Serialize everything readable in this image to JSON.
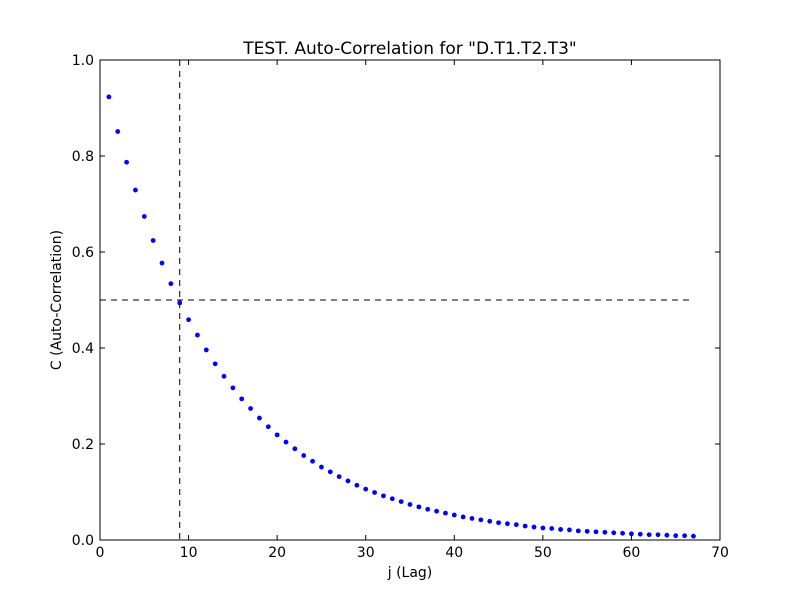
{
  "chart_data": {
    "type": "scatter",
    "title": "TEST. Auto-Correlation for \"D.T1.T2.T3\"",
    "xlabel": "j (Lag)",
    "ylabel": "C (Auto-Correlation)",
    "xlim": [
      0,
      70
    ],
    "ylim": [
      0.0,
      1.0
    ],
    "xticks": [
      "0",
      "10",
      "20",
      "30",
      "40",
      "50",
      "60",
      "70"
    ],
    "yticks": [
      "0.0",
      "0.2",
      "0.4",
      "0.6",
      "0.8",
      "1.0"
    ],
    "grid": false,
    "legend": "none",
    "marker_color": "#0000ff",
    "reference_lines": {
      "horizontal_y": 0.5,
      "vertical_x": 9
    },
    "series": [
      {
        "x": [
          1,
          2,
          3,
          4,
          5,
          6,
          7,
          8,
          9,
          10,
          11,
          12,
          13,
          14,
          15,
          16,
          17,
          18,
          19,
          20,
          21,
          22,
          23,
          24,
          25,
          26,
          27,
          28,
          29,
          30,
          31,
          32,
          33,
          34,
          35,
          36,
          37,
          38,
          39,
          40,
          41,
          42,
          43,
          44,
          45,
          46,
          47,
          48,
          49,
          50,
          51,
          52,
          53,
          54,
          55,
          56,
          57,
          58,
          59,
          60,
          61,
          62,
          63,
          64,
          65,
          66,
          67
        ],
        "y": [
          0.923,
          0.851,
          0.787,
          0.729,
          0.674,
          0.624,
          0.577,
          0.534,
          0.494,
          0.459,
          0.427,
          0.396,
          0.367,
          0.341,
          0.317,
          0.294,
          0.274,
          0.254,
          0.236,
          0.219,
          0.204,
          0.19,
          0.176,
          0.164,
          0.152,
          0.142,
          0.132,
          0.123,
          0.114,
          0.106,
          0.099,
          0.092,
          0.086,
          0.08,
          0.074,
          0.069,
          0.064,
          0.06,
          0.056,
          0.052,
          0.048,
          0.045,
          0.042,
          0.039,
          0.036,
          0.034,
          0.032,
          0.029,
          0.027,
          0.025,
          0.024,
          0.022,
          0.021,
          0.019,
          0.018,
          0.017,
          0.016,
          0.015,
          0.014,
          0.013,
          0.012,
          0.011,
          0.011,
          0.01,
          0.009,
          0.009,
          0.008
        ]
      }
    ]
  }
}
